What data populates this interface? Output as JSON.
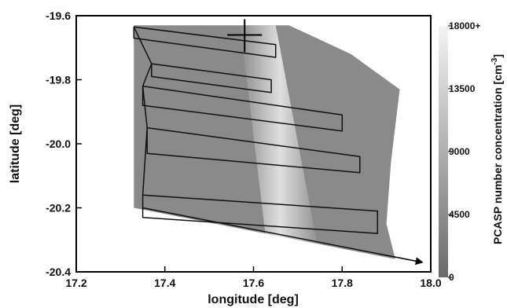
{
  "chart_data": {
    "type": "heatmap",
    "title": "",
    "xlabel": "longitude [deg]",
    "ylabel": "latitude [deg]",
    "xlim": [
      17.2,
      18.0
    ],
    "ylim": [
      -20.4,
      -19.6
    ],
    "xticks": [
      "17.2",
      "17.4",
      "17.6",
      "17.8",
      "18.0"
    ],
    "yticks": [
      "-19.6",
      "-19.8",
      "-20.0",
      "-20.2",
      "-20.4"
    ],
    "colorbar": {
      "label": "PCASP number concentration [cm",
      "label_sup": "-3",
      "label_close": "]",
      "range": [
        0,
        18000
      ],
      "ticks": [
        "18000+",
        "13500",
        "9000",
        "4500",
        "0"
      ],
      "colormap": "grayscale, dark gray (low) to white (high)"
    },
    "field": {
      "domain_polygon": [
        [
          17.33,
          -19.63
        ],
        [
          17.68,
          -19.63
        ],
        [
          17.82,
          -19.72
        ],
        [
          17.93,
          -19.83
        ],
        [
          17.91,
          -20.06
        ],
        [
          17.9,
          -20.25
        ],
        [
          17.92,
          -20.36
        ],
        [
          17.33,
          -20.2
        ]
      ],
      "high_concentration_band": [
        [
          17.57,
          -19.63
        ],
        [
          17.65,
          -19.63
        ],
        [
          17.75,
          -20.36
        ],
        [
          17.63,
          -20.32
        ]
      ]
    },
    "flight_track": [
      [
        17.33,
        -19.635
      ],
      [
        17.65,
        -19.69
      ],
      [
        17.65,
        -19.73
      ],
      [
        17.33,
        -19.67
      ],
      [
        17.33,
        -19.635
      ],
      [
        17.37,
        -19.75
      ],
      [
        17.64,
        -19.8
      ],
      [
        17.64,
        -19.84
      ],
      [
        17.37,
        -19.79
      ],
      [
        17.37,
        -19.75
      ],
      [
        17.35,
        -19.82
      ],
      [
        17.8,
        -19.91
      ],
      [
        17.8,
        -19.96
      ],
      [
        17.35,
        -19.88
      ],
      [
        17.35,
        -19.82
      ],
      [
        17.36,
        -19.95
      ],
      [
        17.84,
        -20.04
      ],
      [
        17.84,
        -20.09
      ],
      [
        17.36,
        -20.03
      ],
      [
        17.36,
        -19.95
      ],
      [
        17.35,
        -20.16
      ],
      [
        17.88,
        -20.21
      ],
      [
        17.88,
        -20.28
      ],
      [
        17.35,
        -20.23
      ],
      [
        17.35,
        -20.16
      ],
      [
        17.35,
        -20.2
      ],
      [
        17.98,
        -20.37
      ]
    ],
    "marker_cross": [
      17.58,
      -19.66
    ],
    "arrow_end": [
      17.98,
      -20.37
    ]
  }
}
